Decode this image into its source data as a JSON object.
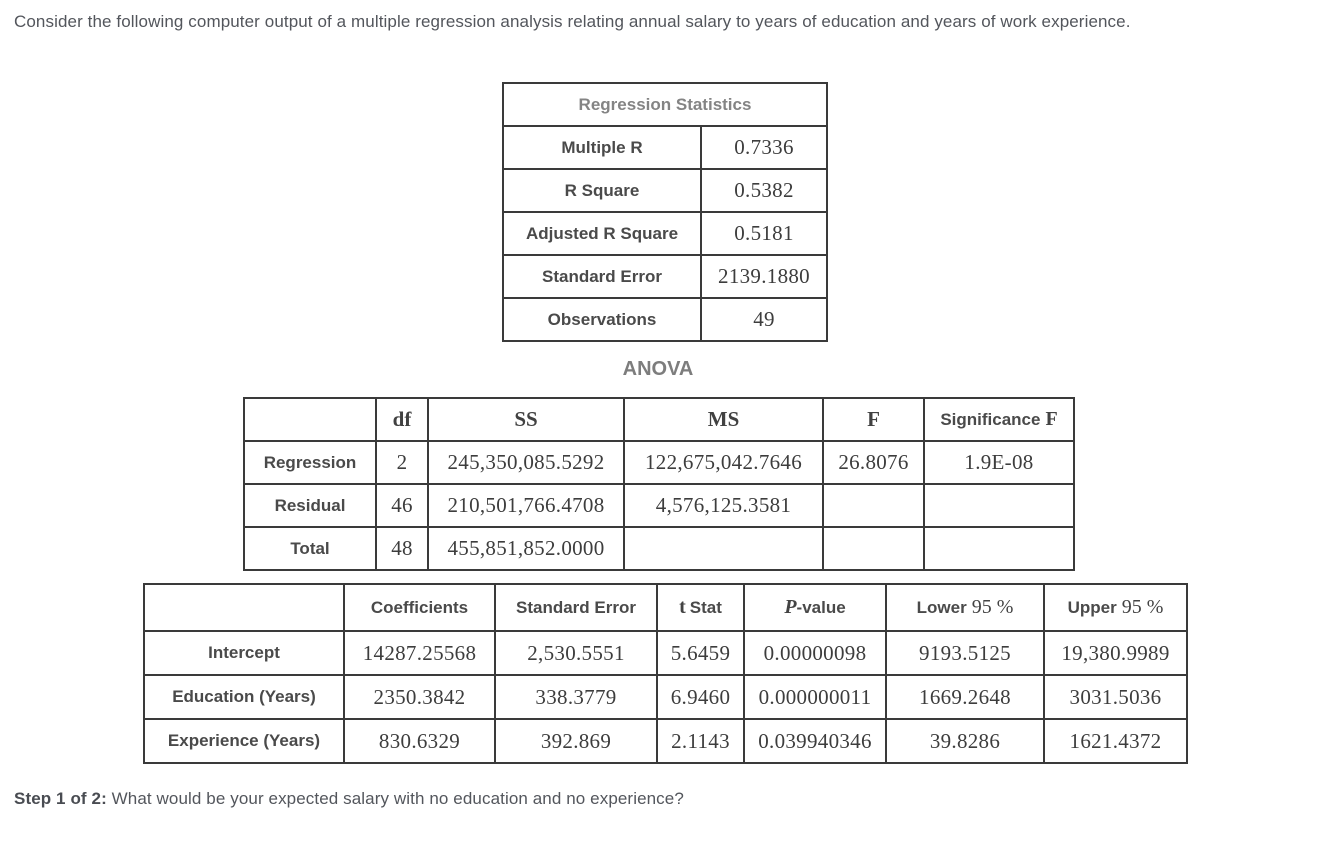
{
  "intro": "Consider the following computer output of a multiple regression analysis relating annual salary to years of education and years of work experience.",
  "regression_statistics": {
    "title": "Regression Statistics",
    "rows": [
      {
        "label": "Multiple R",
        "value": "0.7336"
      },
      {
        "label": "R Square",
        "value": "0.5382"
      },
      {
        "label": "Adjusted R Square",
        "value": "0.5181"
      },
      {
        "label": "Standard Error",
        "value": "2139.1880"
      },
      {
        "label": "Observations",
        "value": "49"
      }
    ]
  },
  "anova": {
    "title": "ANOVA",
    "headers": {
      "df": "df",
      "ss": "SS",
      "ms": "MS",
      "f": "F",
      "significance_f": {
        "label": "Significance",
        "f_symbol": "F"
      }
    },
    "rows": [
      {
        "label": "Regression",
        "df": "2",
        "ss": "245,350,085.5292",
        "ms": "122,675,042.7646",
        "f": "26.8076",
        "significance_f": "1.9E-08"
      },
      {
        "label": "Residual",
        "df": "46",
        "ss": "210,501,766.4708",
        "ms": "4,576,125.3581"
      },
      {
        "label": "Total",
        "df": "48",
        "ss": "455,851,852.0000"
      }
    ]
  },
  "coefficients_table": {
    "headers": {
      "coefficients": "Coefficients",
      "standard_error": "Standard Error",
      "t_stat": {
        "serif": "t",
        "label": "Stat"
      },
      "p_value": {
        "serif": "P",
        "label": "-value"
      },
      "lower_95": {
        "label": "Lower",
        "serif": "95 %"
      },
      "upper_95": {
        "label": "Upper",
        "serif": "95 %"
      }
    },
    "rows": [
      {
        "label": "Intercept",
        "coefficient": "14287.25568",
        "standard_error": "2,530.5551",
        "t_stat": "5.6459",
        "p_value": "0.00000098",
        "lower_95": "9193.5125",
        "upper_95": "19,380.9989"
      },
      {
        "label": "Education (Years)",
        "coefficient": "2350.3842",
        "standard_error": "338.3779",
        "t_stat": "6.9460",
        "p_value": "0.000000011",
        "lower_95": "1669.2648",
        "upper_95": "3031.5036"
      },
      {
        "label": "Experience (Years)",
        "coefficient": "830.6329",
        "standard_error": "392.869",
        "t_stat": "2.1143",
        "p_value": "0.039940346",
        "lower_95": "39.8286",
        "upper_95": "1621.4372"
      }
    ]
  },
  "step": {
    "label": "Step 1 of 2:",
    "question": "What would be your expected salary with no education and no experience?"
  }
}
